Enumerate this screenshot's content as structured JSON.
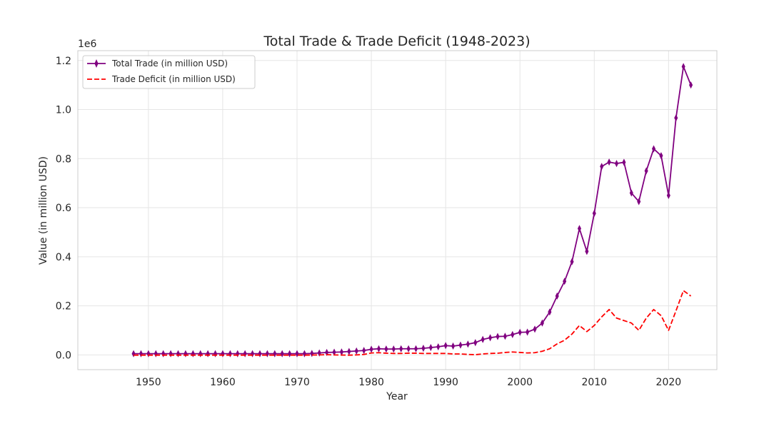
{
  "chart_data": {
    "type": "line",
    "title": "Total Trade & Trade Deficit (1948-2023)",
    "xlabel": "Year",
    "ylabel": "Value (in million USD)",
    "y_offset_text": "1e6",
    "xlim": [
      1940.5,
      2026.5
    ],
    "ylim": [
      -60000,
      1240000
    ],
    "x_ticks": [
      1950,
      1960,
      1970,
      1980,
      1990,
      2000,
      2010,
      2020
    ],
    "x_tick_labels": [
      "1950",
      "1960",
      "1970",
      "1980",
      "1990",
      "2000",
      "2010",
      "2020"
    ],
    "y_ticks": [
      0,
      200000,
      400000,
      600000,
      800000,
      1000000,
      1200000
    ],
    "y_tick_labels": [
      "0.0",
      "0.2",
      "0.4",
      "0.6",
      "0.8",
      "1.0",
      "1.2"
    ],
    "grid": true,
    "legend_position": "top-left",
    "x": [
      1948,
      1949,
      1950,
      1951,
      1952,
      1953,
      1954,
      1955,
      1956,
      1957,
      1958,
      1959,
      1960,
      1961,
      1962,
      1963,
      1964,
      1965,
      1966,
      1967,
      1968,
      1969,
      1970,
      1971,
      1972,
      1973,
      1974,
      1975,
      1976,
      1977,
      1978,
      1979,
      1980,
      1981,
      1982,
      1983,
      1984,
      1985,
      1986,
      1987,
      1988,
      1989,
      1990,
      1991,
      1992,
      1993,
      1994,
      1995,
      1996,
      1997,
      1998,
      1999,
      2000,
      2001,
      2002,
      2003,
      2004,
      2005,
      2006,
      2007,
      2008,
      2009,
      2010,
      2011,
      2012,
      2013,
      2014,
      2015,
      2016,
      2017,
      2018,
      2019,
      2020,
      2021,
      2022,
      2023
    ],
    "series": [
      {
        "name": "Total Trade (in million USD)",
        "color": "#800080",
        "line_style": "solid",
        "marker": "thin_diamond",
        "values": [
          5000,
          5000,
          5000,
          5000,
          5000,
          5000,
          5000,
          5000,
          5000,
          5000,
          5000,
          5000,
          5000,
          5000,
          5000,
          5000,
          5000,
          5000,
          5000,
          5000,
          5000,
          5000,
          5000,
          5000,
          6000,
          8000,
          10000,
          11000,
          12000,
          14000,
          16000,
          18000,
          23000,
          25000,
          24000,
          24000,
          25000,
          25000,
          25000,
          27000,
          30000,
          33000,
          38000,
          36000,
          40000,
          44000,
          50000,
          63000,
          70000,
          75000,
          76000,
          83000,
          92000,
          93000,
          105000,
          130000,
          175000,
          240000,
          300000,
          380000,
          515000,
          422000,
          577000,
          768000,
          786000,
          780000,
          785000,
          660000,
          625000,
          750000,
          840000,
          812000,
          650000,
          966000,
          1175000,
          1100000
        ]
      },
      {
        "name": "Trade Deficit (in million USD)",
        "color": "#ff0000",
        "line_style": "dashed",
        "marker": "none",
        "values": [
          -1000,
          -1000,
          -1000,
          -1000,
          -1000,
          -1000,
          -1000,
          -1000,
          -1000,
          -1000,
          -1000,
          -1000,
          -1000,
          -1000,
          -1000,
          -1000,
          -1000,
          -1000,
          -1000,
          -1000,
          -1000,
          -1000,
          -1000,
          -1000,
          -500,
          0,
          1000,
          0,
          -500,
          -1000,
          0,
          2000,
          8000,
          9000,
          7000,
          6000,
          6000,
          7000,
          7000,
          6000,
          6000,
          6000,
          6000,
          4000,
          4000,
          2000,
          1000,
          4000,
          6000,
          7000,
          10000,
          12000,
          10000,
          8000,
          9000,
          15000,
          25000,
          45000,
          60000,
          85000,
          120000,
          95000,
          120000,
          155000,
          185000,
          150000,
          140000,
          130000,
          100000,
          150000,
          185000,
          160000,
          100000,
          180000,
          262000,
          240000
        ]
      }
    ]
  }
}
